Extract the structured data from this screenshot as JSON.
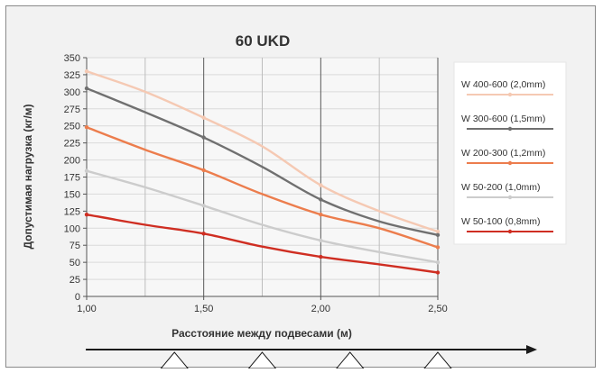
{
  "chart_data": {
    "type": "line",
    "title": "60 UKD",
    "xlabel": "Расстояние между подвесами (м)",
    "ylabel": "Допустимая нагрузка (кг/м)",
    "xlim": [
      1.0,
      2.5
    ],
    "ylim": [
      0,
      350
    ],
    "x_ticks": [
      1.0,
      1.5,
      2.0,
      2.5
    ],
    "x_tick_labels": [
      "1,00",
      "1,50",
      "2,00",
      "2,50"
    ],
    "y_ticks": [
      0,
      25,
      50,
      75,
      100,
      125,
      150,
      175,
      200,
      225,
      250,
      275,
      300,
      325,
      350
    ],
    "grid": true,
    "legend_position": "right",
    "series": [
      {
        "name": "W 400-600 (2,0mm)",
        "color": "#f5c9b3",
        "x": [
          1.0,
          1.25,
          1.5,
          1.75,
          2.0,
          2.25,
          2.5
        ],
        "y": [
          330,
          300,
          262,
          220,
          163,
          125,
          95
        ]
      },
      {
        "name": "W 300-600 (1,5mm)",
        "color": "#707070",
        "x": [
          1.0,
          1.25,
          1.5,
          1.75,
          2.0,
          2.25,
          2.5
        ],
        "y": [
          305,
          270,
          233,
          190,
          142,
          110,
          90
        ]
      },
      {
        "name": "W 200-300 (1,2mm)",
        "color": "#ec7d4d",
        "x": [
          1.0,
          1.25,
          1.5,
          1.75,
          2.0,
          2.25,
          2.5
        ],
        "y": [
          248,
          215,
          185,
          150,
          120,
          100,
          72
        ]
      },
      {
        "name": "W 50-200 (1,0mm)",
        "color": "#cccccc",
        "x": [
          1.0,
          1.25,
          1.5,
          1.75,
          2.0,
          2.25,
          2.5
        ],
        "y": [
          184,
          160,
          133,
          105,
          82,
          65,
          50
        ]
      },
      {
        "name": "W 50-100 (0,8mm)",
        "color": "#cf2e22",
        "x": [
          1.0,
          1.25,
          1.5,
          1.75,
          2.0,
          2.25,
          2.5
        ],
        "y": [
          120,
          105,
          92,
          73,
          58,
          47,
          35
        ]
      }
    ],
    "markers_x": [
      1.375,
      1.75,
      2.125,
      2.5
    ]
  }
}
